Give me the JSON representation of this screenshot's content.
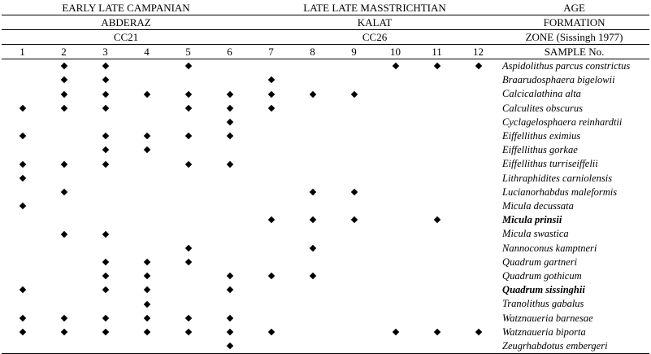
{
  "header": {
    "age": {
      "campanian": "EARLY LATE CAMPANIAN",
      "maastrichtian": "LATE LATE MASSTRICHTIAN",
      "label": "AGE"
    },
    "formation": {
      "abderaz": "ABDERAZ",
      "kalat": "KALAT",
      "label": "FORMATION"
    },
    "zone": {
      "cc21": "CC21",
      "cc26": "CC26",
      "label": "ZONE (Sissingh 1977)"
    },
    "samples": [
      "1",
      "2",
      "3",
      "4",
      "5",
      "6",
      "7",
      "8",
      "9",
      "10",
      "11",
      "12"
    ],
    "sample_label": "SAMPLE No."
  },
  "rows": [
    {
      "species": "Aspidolithus parcus constrictus",
      "bold": false,
      "present": [
        2,
        3,
        5,
        10,
        11,
        12
      ]
    },
    {
      "species": "Braarudosphaera bigelowii",
      "bold": false,
      "present": [
        2,
        3,
        7
      ]
    },
    {
      "species": "Calcicalathina alta",
      "bold": false,
      "present": [
        2,
        3,
        4,
        5,
        6,
        7,
        8,
        9
      ]
    },
    {
      "species": "Calculites obscurus",
      "bold": false,
      "present": [
        1,
        2,
        3,
        5,
        6,
        7
      ]
    },
    {
      "species": "Cyclagelosphaera reinhardtii",
      "bold": false,
      "present": [
        6
      ]
    },
    {
      "species": "Eiffellithus eximius",
      "bold": false,
      "present": [
        1,
        3,
        4,
        5,
        6
      ]
    },
    {
      "species": "Eiffellithus gorkae",
      "bold": false,
      "present": [
        3,
        4
      ]
    },
    {
      "species": "Eiffellithus turriseiffelii",
      "bold": false,
      "present": [
        1,
        2,
        3,
        5,
        6
      ]
    },
    {
      "species": "Lithraphidites carniolensis",
      "bold": false,
      "present": [
        1
      ]
    },
    {
      "species": "Lucianorhabdus maleformis",
      "bold": false,
      "present": [
        2,
        8,
        9
      ]
    },
    {
      "species": "Micula decussata",
      "bold": false,
      "present": [
        1
      ]
    },
    {
      "species": "Micula prinsii",
      "bold": true,
      "present": [
        7,
        8,
        9,
        11
      ]
    },
    {
      "species": "Micula swastica",
      "bold": false,
      "present": [
        2,
        3
      ]
    },
    {
      "species": "Nannoconus kamptneri",
      "bold": false,
      "present": [
        5,
        8
      ]
    },
    {
      "species": "Quadrum gartneri",
      "bold": false,
      "present": [
        3,
        4,
        5
      ]
    },
    {
      "species": "Quadrum gothicum",
      "bold": false,
      "present": [
        3,
        4,
        6,
        7,
        8
      ]
    },
    {
      "species": "Quadrum sissinghii",
      "bold": true,
      "present": [
        1,
        3,
        4,
        6
      ]
    },
    {
      "species": "Tranolithus gabalus",
      "bold": false,
      "present": [
        4
      ]
    },
    {
      "species": "Watznaueria barnesae",
      "bold": false,
      "present": [
        1,
        2,
        3,
        4,
        5,
        6
      ]
    },
    {
      "species": "Watznaueria biporta",
      "bold": false,
      "present": [
        1,
        2,
        3,
        4,
        5,
        6,
        7,
        10,
        11,
        12
      ]
    },
    {
      "species": "Zeugrhabdotus embergeri",
      "bold": false,
      "present": [
        6
      ]
    }
  ],
  "marker_icon": "diamond-icon"
}
